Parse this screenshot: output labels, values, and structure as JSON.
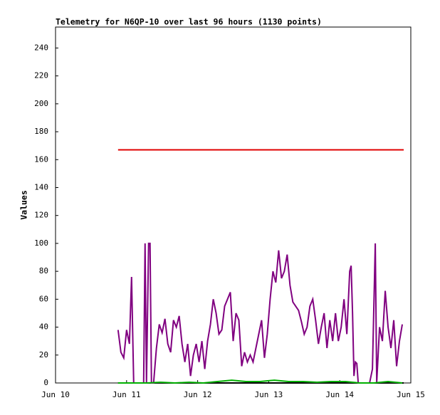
{
  "chart_data": {
    "type": "line",
    "title": "Telemetry for N6QP-10 over last 96 hours (1130 points)",
    "y_label": "Values",
    "xlim": [
      0,
      5
    ],
    "xticks": [
      {
        "value": 0,
        "label": "Jun 10"
      },
      {
        "value": 1,
        "label": "Jun 11"
      },
      {
        "value": 2,
        "label": "Jun 12"
      },
      {
        "value": 3,
        "label": "Jun 13"
      },
      {
        "value": 4,
        "label": "Jun 14"
      },
      {
        "value": 5,
        "label": "Jun 15"
      }
    ],
    "ylim": [
      0,
      255
    ],
    "yticks": [
      0,
      20,
      40,
      60,
      80,
      100,
      120,
      140,
      160,
      180,
      200,
      220,
      240
    ],
    "grid": false,
    "series": [
      {
        "color": "#000000",
        "x": [
          0.88,
          4.9
        ],
        "values": [
          0,
          0
        ]
      },
      {
        "color": "#e00000",
        "x": [
          0.88,
          4.9
        ],
        "values": [
          167,
          167
        ]
      },
      {
        "color": "#800080",
        "x": [
          0.88,
          0.92,
          0.96,
          1.0,
          1.04,
          1.07,
          1.1,
          1.12,
          1.16,
          1.2,
          1.24,
          1.26,
          1.28,
          1.31,
          1.33,
          1.35,
          1.38,
          1.42,
          1.46,
          1.5,
          1.54,
          1.58,
          1.62,
          1.66,
          1.7,
          1.74,
          1.78,
          1.82,
          1.86,
          1.9,
          1.94,
          1.98,
          2.02,
          2.06,
          2.1,
          2.14,
          2.18,
          2.22,
          2.26,
          2.3,
          2.34,
          2.38,
          2.42,
          2.46,
          2.5,
          2.54,
          2.58,
          2.62,
          2.66,
          2.7,
          2.74,
          2.78,
          2.82,
          2.86,
          2.9,
          2.94,
          2.98,
          3.02,
          3.06,
          3.1,
          3.14,
          3.18,
          3.22,
          3.26,
          3.3,
          3.34,
          3.38,
          3.42,
          3.46,
          3.5,
          3.54,
          3.58,
          3.62,
          3.66,
          3.7,
          3.74,
          3.78,
          3.82,
          3.86,
          3.9,
          3.94,
          3.98,
          4.02,
          4.06,
          4.1,
          4.14,
          4.16,
          4.18,
          4.2,
          4.22,
          4.24,
          4.26,
          4.3,
          4.34,
          4.38,
          4.42,
          4.46,
          4.5,
          4.52,
          4.56,
          4.6,
          4.64,
          4.68,
          4.72,
          4.76,
          4.8,
          4.84,
          4.88
        ],
        "values": [
          38,
          22,
          18,
          38,
          28,
          76,
          0,
          0,
          0,
          0,
          0,
          100,
          0,
          100,
          100,
          0,
          0,
          25,
          42,
          36,
          46,
          28,
          22,
          45,
          40,
          48,
          28,
          15,
          28,
          5,
          20,
          28,
          15,
          30,
          10,
          30,
          42,
          60,
          50,
          35,
          38,
          55,
          60,
          65,
          30,
          50,
          45,
          12,
          22,
          15,
          20,
          15,
          25,
          35,
          45,
          18,
          35,
          60,
          80,
          72,
          95,
          75,
          80,
          92,
          70,
          58,
          55,
          52,
          44,
          35,
          40,
          55,
          60,
          45,
          28,
          40,
          50,
          25,
          45,
          30,
          50,
          30,
          40,
          60,
          35,
          80,
          84,
          50,
          5,
          15,
          14,
          0,
          0,
          0,
          0,
          0,
          10,
          100,
          0,
          40,
          30,
          66,
          40,
          25,
          45,
          12,
          30,
          42
        ]
      },
      {
        "color": "#00b000",
        "x": [
          0.88,
          1.08,
          1.28,
          1.48,
          1.68,
          1.88,
          2.08,
          2.28,
          2.48,
          2.68,
          2.88,
          3.08,
          3.28,
          3.48,
          3.68,
          3.88,
          4.08,
          4.28,
          4.48,
          4.68,
          4.88
        ],
        "values": [
          0,
          0,
          0,
          0.5,
          0,
          0.5,
          0,
          1,
          2,
          1,
          1,
          2,
          1,
          1,
          0.5,
          1,
          1,
          0,
          0,
          1,
          0
        ]
      }
    ]
  }
}
